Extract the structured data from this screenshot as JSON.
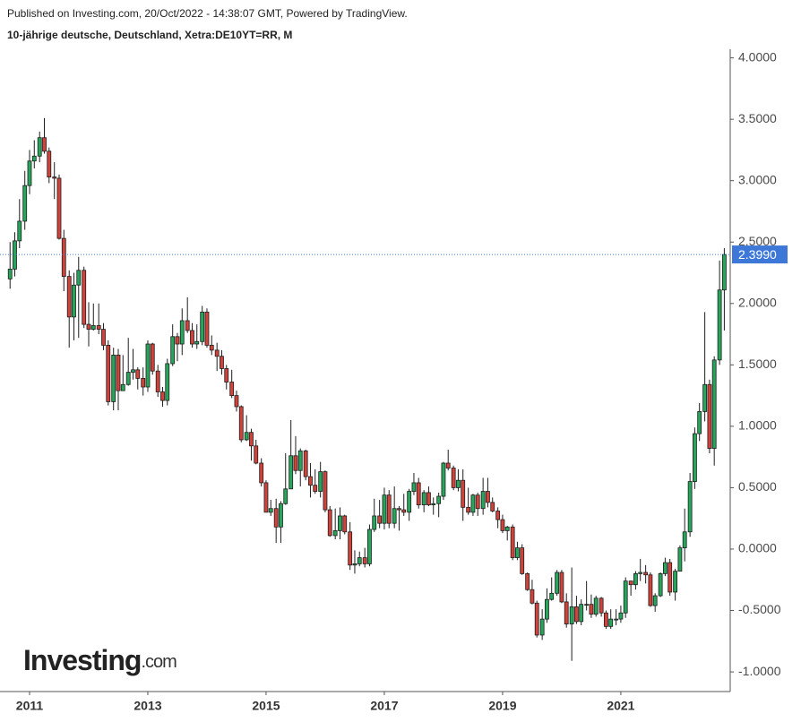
{
  "chart_data": {
    "type": "candlestick",
    "subtitle": "Published on Investing.com, 20/Oct/2022 - 14:38:07 GMT, Powered by TradingView.",
    "title": "10-jährige deutsche, Deutschland, Xetra:DE10YT=RR, M",
    "x": [
      2010.67,
      2010.75,
      2010.83,
      2010.92,
      2011,
      2011.08,
      2011.17,
      2011.25,
      2011.33,
      2011.42,
      2011.5,
      2011.58,
      2011.67,
      2011.75,
      2011.83,
      2011.92,
      2012,
      2012.08,
      2012.17,
      2012.25,
      2012.33,
      2012.42,
      2012.5,
      2012.58,
      2012.67,
      2012.75,
      2012.83,
      2012.92,
      2013,
      2013.08,
      2013.17,
      2013.25,
      2013.33,
      2013.42,
      2013.5,
      2013.58,
      2013.67,
      2013.75,
      2013.83,
      2013.92,
      2014,
      2014.08,
      2014.17,
      2014.25,
      2014.33,
      2014.42,
      2014.5,
      2014.58,
      2014.67,
      2014.75,
      2014.83,
      2014.92,
      2015,
      2015.08,
      2015.17,
      2015.25,
      2015.33,
      2015.42,
      2015.5,
      2015.58,
      2015.67,
      2015.75,
      2015.83,
      2015.92,
      2016,
      2016.08,
      2016.17,
      2016.25,
      2016.33,
      2016.42,
      2016.5,
      2016.58,
      2016.67,
      2016.75,
      2016.83,
      2016.92,
      2017,
      2017.08,
      2017.17,
      2017.25,
      2017.33,
      2017.42,
      2017.5,
      2017.58,
      2017.67,
      2017.75,
      2017.83,
      2017.92,
      2018,
      2018.08,
      2018.17,
      2018.25,
      2018.33,
      2018.42,
      2018.5,
      2018.58,
      2018.67,
      2018.75,
      2018.83,
      2018.92,
      2019,
      2019.08,
      2019.17,
      2019.25,
      2019.33,
      2019.42,
      2019.5,
      2019.58,
      2019.67,
      2019.75,
      2019.83,
      2019.92,
      2020,
      2020.08,
      2020.17,
      2020.25,
      2020.33,
      2020.42,
      2020.5,
      2020.58,
      2020.67,
      2020.75,
      2020.83,
      2020.92,
      2021,
      2021.08,
      2021.17,
      2021.25,
      2021.33,
      2021.42,
      2021.5,
      2021.58,
      2021.67,
      2021.75,
      2021.83,
      2021.92,
      2022,
      2022.08,
      2022.17,
      2022.25,
      2022.33,
      2022.42,
      2022.5,
      2022.58,
      2022.67,
      2022.75
    ],
    "open": [
      2.2,
      2.28,
      2.51,
      2.67,
      2.96,
      3.16,
      3.2,
      3.35,
      3.24,
      3.03,
      3.02,
      2.53,
      2.22,
      1.89,
      2.15,
      2.27,
      1.83,
      1.79,
      1.82,
      1.79,
      1.66,
      1.2,
      1.58,
      1.29,
      1.34,
      1.44,
      1.46,
      1.39,
      1.32,
      1.67,
      1.45,
      1.28,
      1.21,
      1.51,
      1.73,
      1.67,
      1.86,
      1.78,
      1.67,
      1.69,
      1.93,
      1.66,
      1.62,
      1.57,
      1.47,
      1.36,
      1.25,
      1.16,
      0.89,
      0.95,
      0.84,
      0.7,
      0.54,
      0.3,
      0.33,
      0.18,
      0.37,
      0.49,
      0.76,
      0.64,
      0.8,
      0.59,
      0.52,
      0.47,
      0.63,
      0.32,
      0.11,
      0.15,
      0.27,
      0.14,
      -0.13,
      -0.12,
      -0.07,
      -0.12,
      0.16,
      0.27,
      0.21,
      0.44,
      0.21,
      0.33,
      0.32,
      0.3,
      0.47,
      0.54,
      0.36,
      0.46,
      0.36,
      0.37,
      0.43,
      0.7,
      0.66,
      0.5,
      0.56,
      0.34,
      0.3,
      0.44,
      0.33,
      0.47,
      0.38,
      0.31,
      0.24,
      0.15,
      0.18,
      -0.07,
      0.01,
      -0.2,
      -0.33,
      -0.44,
      -0.7,
      -0.57,
      -0.41,
      -0.36,
      -0.19,
      -0.43,
      -0.61,
      -0.47,
      -0.59,
      -0.45,
      -0.45,
      -0.53,
      -0.4,
      -0.52,
      -0.63,
      -0.57,
      -0.57,
      -0.52,
      -0.26,
      -0.29,
      -0.2,
      -0.19,
      -0.21,
      -0.46,
      -0.38,
      -0.2,
      -0.11,
      -0.35,
      -0.18,
      0.01,
      0.14,
      0.55,
      0.94,
      1.12,
      1.34,
      0.82,
      1.54,
      2.11
    ],
    "high": [
      2.5,
      2.58,
      2.85,
      3.08,
      3.25,
      3.33,
      3.4,
      3.51,
      3.27,
      3.15,
      3.05,
      2.6,
      2.27,
      2.25,
      2.38,
      2.3,
      2.01,
      2.0,
      2.0,
      1.84,
      1.7,
      1.64,
      1.63,
      1.58,
      1.72,
      1.63,
      1.48,
      1.48,
      1.7,
      1.68,
      1.5,
      1.32,
      1.55,
      1.83,
      1.76,
      1.96,
      2.05,
      1.84,
      1.83,
      1.98,
      1.96,
      1.74,
      1.68,
      1.62,
      1.5,
      1.46,
      1.29,
      1.17,
      1.09,
      0.98,
      0.89,
      0.74,
      0.56,
      0.4,
      0.41,
      0.39,
      0.78,
      1.05,
      0.92,
      0.82,
      0.81,
      0.7,
      0.65,
      0.71,
      0.64,
      0.35,
      0.33,
      0.34,
      0.28,
      0.22,
      -0.01,
      -0.02,
      0.01,
      0.2,
      0.41,
      0.4,
      0.5,
      0.48,
      0.51,
      0.35,
      0.45,
      0.49,
      0.62,
      0.58,
      0.48,
      0.51,
      0.42,
      0.46,
      0.71,
      0.81,
      0.68,
      0.65,
      0.65,
      0.5,
      0.45,
      0.46,
      0.58,
      0.58,
      0.42,
      0.34,
      0.28,
      0.19,
      0.2,
      0.06,
      0.04,
      -0.19,
      -0.25,
      -0.42,
      -0.49,
      -0.32,
      -0.23,
      -0.17,
      -0.17,
      -0.36,
      -0.15,
      -0.38,
      -0.41,
      -0.26,
      -0.37,
      -0.38,
      -0.39,
      -0.5,
      -0.49,
      -0.49,
      -0.46,
      -0.23,
      -0.26,
      -0.18,
      -0.08,
      -0.13,
      -0.19,
      -0.36,
      -0.19,
      -0.07,
      -0.08,
      -0.16,
      0.03,
      0.33,
      0.62,
      0.99,
      1.19,
      1.93,
      1.38,
      1.57,
      2.35,
      2.45
    ],
    "low": [
      2.12,
      2.22,
      2.45,
      2.6,
      2.89,
      3.1,
      3.15,
      3.22,
      2.98,
      2.85,
      2.52,
      2.1,
      1.64,
      1.7,
      1.72,
      1.8,
      1.65,
      1.78,
      1.75,
      1.62,
      1.17,
      1.13,
      1.13,
      1.3,
      1.33,
      1.38,
      1.3,
      1.25,
      1.28,
      1.42,
      1.24,
      1.16,
      1.17,
      1.49,
      1.53,
      1.58,
      1.76,
      1.64,
      1.63,
      1.66,
      1.64,
      1.58,
      1.45,
      1.42,
      1.3,
      1.23,
      1.12,
      0.87,
      0.88,
      0.72,
      0.69,
      0.51,
      0.3,
      0.27,
      0.05,
      0.05,
      0.36,
      0.49,
      0.61,
      0.51,
      0.56,
      0.42,
      0.45,
      0.42,
      0.3,
      0.1,
      0.08,
      0.08,
      0.12,
      -0.17,
      -0.2,
      -0.14,
      -0.15,
      -0.14,
      0.14,
      0.17,
      0.16,
      0.17,
      0.17,
      0.15,
      0.27,
      0.23,
      0.44,
      0.33,
      0.3,
      0.35,
      0.28,
      0.26,
      0.4,
      0.64,
      0.48,
      0.47,
      0.23,
      0.28,
      0.27,
      0.27,
      0.28,
      0.34,
      0.3,
      0.17,
      0.13,
      0.07,
      -0.09,
      -0.09,
      -0.21,
      -0.34,
      -0.45,
      -0.72,
      -0.74,
      -0.6,
      -0.42,
      -0.38,
      -0.44,
      -0.64,
      -0.91,
      -0.61,
      -0.62,
      -0.5,
      -0.56,
      -0.55,
      -0.55,
      -0.65,
      -0.65,
      -0.62,
      -0.6,
      -0.56,
      -0.38,
      -0.33,
      -0.26,
      -0.28,
      -0.47,
      -0.51,
      -0.39,
      -0.22,
      -0.38,
      -0.42,
      -0.18,
      -0.1,
      0.1,
      0.49,
      0.88,
      1.04,
      0.78,
      0.68,
      1.5,
      1.78
    ],
    "close": [
      2.28,
      2.51,
      2.67,
      2.96,
      3.16,
      3.2,
      3.35,
      3.24,
      3.03,
      3.02,
      2.53,
      2.22,
      1.89,
      2.15,
      2.27,
      1.83,
      1.79,
      1.82,
      1.79,
      1.66,
      1.2,
      1.58,
      1.29,
      1.34,
      1.44,
      1.46,
      1.39,
      1.32,
      1.67,
      1.45,
      1.28,
      1.21,
      1.51,
      1.73,
      1.67,
      1.86,
      1.78,
      1.67,
      1.69,
      1.93,
      1.66,
      1.62,
      1.57,
      1.47,
      1.36,
      1.25,
      1.16,
      0.89,
      0.95,
      0.84,
      0.7,
      0.54,
      0.3,
      0.33,
      0.18,
      0.37,
      0.49,
      0.76,
      0.64,
      0.8,
      0.59,
      0.52,
      0.47,
      0.63,
      0.32,
      0.11,
      0.15,
      0.27,
      0.14,
      -0.13,
      -0.12,
      -0.07,
      -0.12,
      0.16,
      0.27,
      0.21,
      0.44,
      0.21,
      0.33,
      0.32,
      0.3,
      0.47,
      0.54,
      0.36,
      0.46,
      0.36,
      0.37,
      0.43,
      0.7,
      0.66,
      0.5,
      0.56,
      0.34,
      0.3,
      0.44,
      0.33,
      0.47,
      0.38,
      0.31,
      0.24,
      0.15,
      0.18,
      -0.07,
      0.01,
      -0.2,
      -0.33,
      -0.44,
      -0.7,
      -0.57,
      -0.41,
      -0.36,
      -0.19,
      -0.43,
      -0.61,
      -0.47,
      -0.59,
      -0.45,
      -0.45,
      -0.53,
      -0.4,
      -0.52,
      -0.63,
      -0.57,
      -0.57,
      -0.52,
      -0.26,
      -0.29,
      -0.2,
      -0.19,
      -0.21,
      -0.46,
      -0.38,
      -0.2,
      -0.11,
      -0.35,
      -0.18,
      0.01,
      0.14,
      0.55,
      0.94,
      1.12,
      1.34,
      0.82,
      1.54,
      2.11,
      2.399
    ],
    "last_label": "2.3990",
    "up_color": "#26a65b",
    "down_color": "#d0423a",
    "last_color": "#3d78d8",
    "xlim": [
      2010.5,
      2022.85
    ],
    "xticks": [
      2011,
      2013,
      2015,
      2017,
      2019,
      2021
    ],
    "ylim": [
      -1.16,
      4.07
    ],
    "yticks": [
      {
        "value": -1,
        "label": "-1.0000"
      },
      {
        "value": -0.5,
        "label": "-0.5000"
      },
      {
        "value": 0,
        "label": "0.0000"
      },
      {
        "value": 0.5,
        "label": "0.5000"
      },
      {
        "value": 1,
        "label": "1.0000"
      },
      {
        "value": 1.5,
        "label": "1.5000"
      },
      {
        "value": 2,
        "label": "2.0000"
      },
      {
        "value": 2.5,
        "label": "2.5000"
      },
      {
        "value": 3,
        "label": "3.0000"
      },
      {
        "value": 3.5,
        "label": "3.5000"
      },
      {
        "value": 4,
        "label": "4.0000"
      }
    ],
    "grid": false
  },
  "logo": {
    "brand": "Investing",
    "suffix": ".com"
  }
}
